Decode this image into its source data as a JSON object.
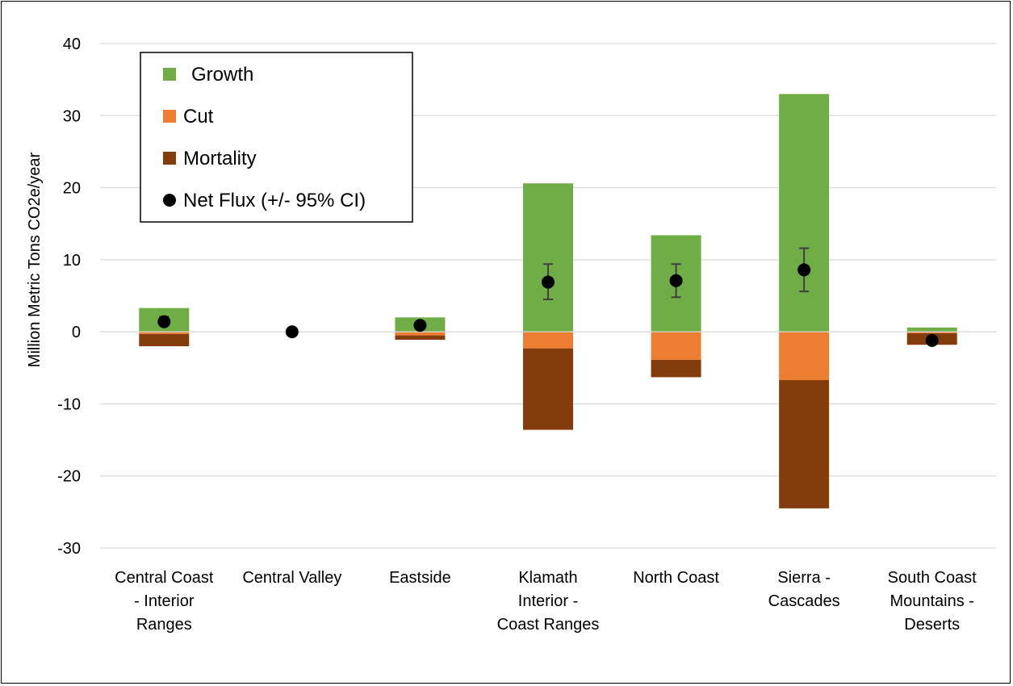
{
  "chart_data": {
    "type": "bar",
    "stacked": true,
    "ylabel": "Million Metric Tons CO2e/year",
    "ylim": [
      -30,
      40
    ],
    "yticks": [
      -30,
      -20,
      -10,
      0,
      10,
      20,
      30,
      40
    ],
    "ytick_labels": [
      "-30",
      "-20",
      "-10",
      "0",
      "10",
      "20",
      "30",
      "40"
    ],
    "grid": true,
    "legend_position": "top-left",
    "categories": [
      [
        "Central Coast",
        "- Interior",
        "Ranges"
      ],
      [
        "Central Valley"
      ],
      [
        "Eastside"
      ],
      [
        "Klamath",
        "Interior -",
        "Coast Ranges"
      ],
      [
        "North Coast"
      ],
      [
        "Sierra -",
        "Cascades"
      ],
      [
        "South Coast",
        "Mountains -",
        "Deserts"
      ]
    ],
    "series": [
      {
        "name": "Growth",
        "color": "#70ad47",
        "values": [
          3.3,
          0,
          2.0,
          20.6,
          13.4,
          33.0,
          0.6
        ]
      },
      {
        "name": "Cut",
        "color": "#ed7d31",
        "values": [
          -0.3,
          0,
          -0.5,
          -2.3,
          -3.9,
          -6.7,
          -0.2
        ]
      },
      {
        "name": "Mortality",
        "color": "#843c0c",
        "values": [
          -1.7,
          0,
          -0.6,
          -11.3,
          -2.4,
          -17.8,
          -1.6
        ]
      }
    ],
    "net_flux": {
      "name": "Net Flux (+/- 95% CI)",
      "values": [
        1.4,
        0.0,
        0.9,
        6.9,
        7.1,
        8.6,
        -1.2
      ],
      "ci_low": [
        0.9,
        null,
        null,
        4.5,
        4.8,
        5.6,
        null
      ],
      "ci_high": [
        2.1,
        null,
        null,
        9.4,
        9.4,
        11.6,
        null
      ]
    }
  }
}
